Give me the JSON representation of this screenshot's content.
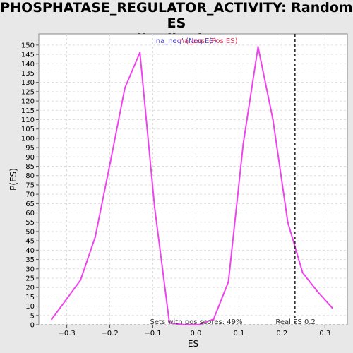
{
  "chart_data": {
    "type": "line",
    "title_line1": "PHOSPHATASE_REGULATOR_ACTIVITY: Random ES",
    "title_line2": "distribution",
    "xlabel": "ES",
    "ylabel": "P(ES)",
    "xlim": [
      -0.365,
      0.352
    ],
    "ylim": [
      0,
      156
    ],
    "x_ticks": [
      -0.3,
      -0.2,
      -0.1,
      0.0,
      0.1,
      0.2,
      0.3
    ],
    "x_tick_labels": [
      "−0.3",
      "−0.2",
      "−0.1",
      "0.0",
      "0.1",
      "0.2",
      "0.3"
    ],
    "y_ticks": [
      0,
      5,
      10,
      15,
      20,
      25,
      30,
      35,
      40,
      45,
      50,
      55,
      60,
      65,
      70,
      75,
      80,
      85,
      90,
      95,
      100,
      105,
      110,
      115,
      120,
      125,
      130,
      135,
      140,
      145,
      150
    ],
    "grid": true,
    "line_color": "#ee44ee",
    "series": [
      {
        "name_neg": "'na_neg' (Neg ES)",
        "name_pos": "'na_pos' (Pos ES)",
        "x": [
          -0.335,
          -0.303,
          -0.268,
          -0.234,
          -0.199,
          -0.165,
          -0.13,
          -0.096,
          -0.0615,
          -0.0275,
          0.007,
          0.041,
          0.0755,
          0.11,
          0.1445,
          0.179,
          0.2135,
          0.248,
          0.282,
          0.317
        ],
        "y": [
          3,
          13,
          24,
          47,
          87,
          127,
          146,
          63,
          1,
          0,
          0,
          3,
          23,
          97,
          149,
          110,
          55,
          28,
          18,
          9
        ]
      }
    ],
    "real_es": {
      "value": 0.23,
      "label": "Real ES 0.2"
    },
    "annotation": "Sets with pos scores: 49%",
    "legend": {
      "neg_label": "'na_neg' (Neg ES)",
      "pos_label": "'na_pos' (Pos ES)",
      "neg_color": "#4444cc",
      "pos_color": "#ee3355"
    }
  }
}
